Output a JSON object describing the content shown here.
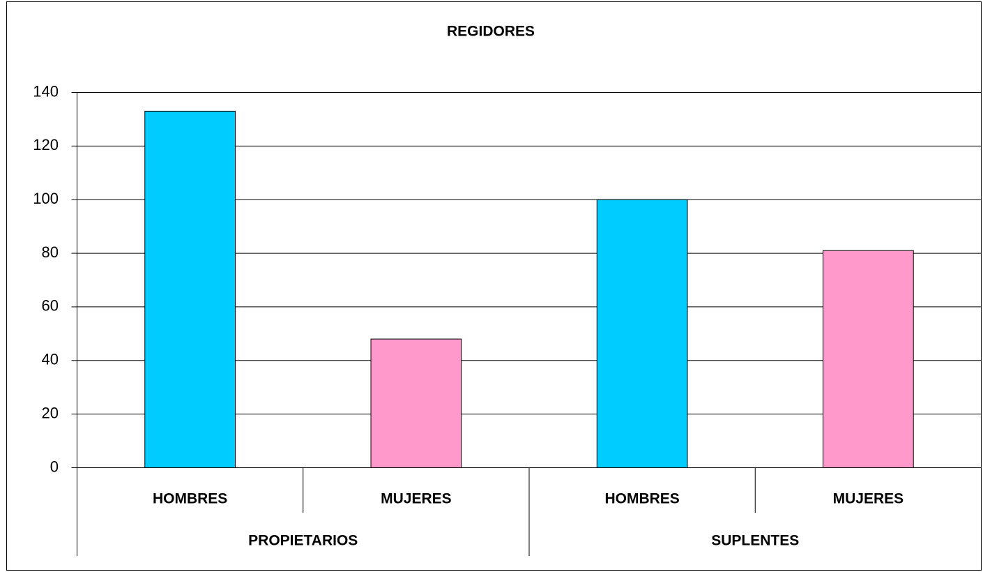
{
  "chart_data": {
    "type": "bar",
    "title": "REGIDORES",
    "categories": [
      "HOMBRES",
      "MUJERES",
      "HOMBRES",
      "MUJERES"
    ],
    "groups": [
      "PROPIETARIOS",
      "SUPLENTES"
    ],
    "values": [
      133,
      48,
      100,
      81
    ],
    "colors": [
      "#00ccff",
      "#ff99cc",
      "#00ccff",
      "#ff99cc"
    ],
    "ylim": [
      0,
      140
    ],
    "yticks": [
      0,
      20,
      40,
      60,
      80,
      100,
      120,
      140
    ],
    "grid": true
  }
}
